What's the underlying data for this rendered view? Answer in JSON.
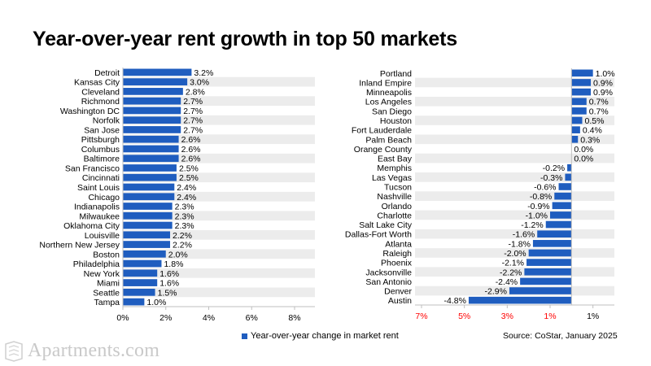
{
  "title": "Year-over-year rent growth in top 50 markets",
  "legend_label": "Year-over-year change in market rent",
  "source": "Source: CoStar, January 2025",
  "brand": {
    "name": "Apartments.com",
    "logo_icon": "apartments-logo-icon"
  },
  "colors": {
    "bar": "#1f5dbf",
    "band": "#ececec",
    "negative_tick": "#ff0000",
    "axis": "#bfbfbf"
  },
  "chart_data": [
    {
      "type": "bar",
      "orientation": "horizontal",
      "categories": [
        "Detroit",
        "Kansas City",
        "Cleveland",
        "Richmond",
        "Washington DC",
        "Norfolk",
        "San Jose",
        "Pittsburgh",
        "Columbus",
        "Baltimore",
        "San Francisco",
        "Cincinnati",
        "Saint Louis",
        "Chicago",
        "Indianapolis",
        "Milwaukee",
        "Oklahoma City",
        "Louisville",
        "Northern New Jersey",
        "Boston",
        "Philadelphia",
        "New York",
        "Miami",
        "Seattle",
        "Tampa"
      ],
      "values": [
        3.2,
        3.0,
        2.8,
        2.7,
        2.7,
        2.7,
        2.7,
        2.6,
        2.6,
        2.6,
        2.5,
        2.5,
        2.4,
        2.4,
        2.3,
        2.3,
        2.3,
        2.2,
        2.2,
        2.0,
        1.8,
        1.6,
        1.6,
        1.5,
        1.0
      ],
      "data_labels": [
        "3.2%",
        "3.0%",
        "2.8%",
        "2.7%",
        "2.7%",
        "2.7%",
        "2.7%",
        "2.6%",
        "2.6%",
        "2.6%",
        "2.5%",
        "2.5%",
        "2.4%",
        "2.4%",
        "2.3%",
        "2.3%",
        "2.3%",
        "2.2%",
        "2.2%",
        "2.0%",
        "1.8%",
        "1.6%",
        "1.6%",
        "1.5%",
        "1.0%"
      ],
      "xlim": [
        0,
        8
      ],
      "ticks": [
        0,
        2,
        4,
        6,
        8
      ],
      "tick_labels": [
        "0%",
        "2%",
        "4%",
        "6%",
        "8%"
      ],
      "grid": false
    },
    {
      "type": "bar",
      "orientation": "horizontal",
      "categories": [
        "Portland",
        "Inland Empire",
        "Minneapolis",
        "Los Angeles",
        "San Diego",
        "Houston",
        "Fort Lauderdale",
        "Palm Beach",
        "Orange County",
        "East Bay",
        "Memphis",
        "Las Vegas",
        "Tucson",
        "Nashville",
        "Orlando",
        "Charlotte",
        "Salt Lake City",
        "Dallas-Fort Worth",
        "Atlanta",
        "Raleigh",
        "Phoenix",
        "Jacksonville",
        "San Antonio",
        "Denver",
        "Austin"
      ],
      "values": [
        1.0,
        0.9,
        0.9,
        0.7,
        0.7,
        0.5,
        0.4,
        0.3,
        0.0,
        0.0,
        -0.2,
        -0.3,
        -0.6,
        -0.8,
        -0.9,
        -1.0,
        -1.2,
        -1.6,
        -1.8,
        -2.0,
        -2.1,
        -2.2,
        -2.4,
        -2.9,
        -4.8
      ],
      "data_labels": [
        "1.0%",
        "0.9%",
        "0.9%",
        "0.7%",
        "0.7%",
        "0.5%",
        "0.4%",
        "0.3%",
        "0.0%",
        "0.0%",
        "-0.2%",
        "-0.3%",
        "-0.6%",
        "-0.8%",
        "-0.9%",
        "-1.0%",
        "-1.2%",
        "-1.6%",
        "-1.8%",
        "-2.0%",
        "-2.1%",
        "-2.2%",
        "-2.4%",
        "-2.9%",
        "-4.8%"
      ],
      "xlim": [
        -7,
        2
      ],
      "ticks": [
        -7,
        -5,
        -3,
        -1,
        1
      ],
      "tick_labels": [
        "7%",
        "5%",
        "3%",
        "1%",
        "1%"
      ],
      "negative_tick_color": "red",
      "grid": false
    }
  ]
}
